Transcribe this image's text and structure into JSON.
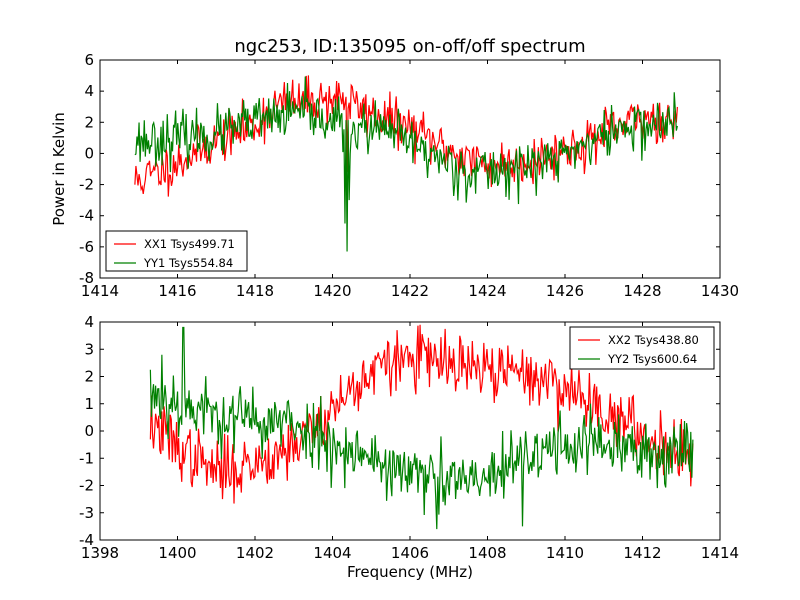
{
  "chart_data": [
    {
      "type": "line",
      "title": "ngc253, ID:135095 on-off/off spectrum",
      "xlabel": "",
      "ylabel": "Power in Kelvin",
      "xlim": [
        1414,
        1430
      ],
      "ylim": [
        -8,
        6
      ],
      "xticks": [
        1414,
        1416,
        1418,
        1420,
        1422,
        1424,
        1426,
        1428,
        1430
      ],
      "yticks": [
        -8,
        -6,
        -4,
        -2,
        0,
        2,
        4,
        6
      ],
      "x_range": [
        1414.9,
        1428.9
      ],
      "legend_position": "lower-left",
      "grid": false,
      "series": [
        {
          "name": "XX1 Tsys499.71",
          "color": "#ff0000",
          "seed": 11,
          "noise": 0.75,
          "profile": [
            [
              1414.9,
              -1.8
            ],
            [
              1415.5,
              -1.2
            ],
            [
              1416.0,
              -0.6
            ],
            [
              1417.0,
              0.8
            ],
            [
              1418.0,
              1.8
            ],
            [
              1418.5,
              3.1
            ],
            [
              1419.5,
              3.4
            ],
            [
              1420.3,
              3.6
            ],
            [
              1420.6,
              3.0
            ],
            [
              1421.0,
              2.6
            ],
            [
              1422.0,
              1.6
            ],
            [
              1423.0,
              0.2
            ],
            [
              1424.0,
              -0.8
            ],
            [
              1425.0,
              -0.5
            ],
            [
              1426.0,
              0.2
            ],
            [
              1427.0,
              1.2
            ],
            [
              1428.0,
              2.3
            ],
            [
              1428.9,
              2.2
            ]
          ],
          "spikes": [
            [
              1420.38,
              -1.2
            ]
          ]
        },
        {
          "name": "YY1 Tsys554.84",
          "color": "#008000",
          "seed": 23,
          "noise": 0.8,
          "profile": [
            [
              1414.9,
              0.8
            ],
            [
              1416.0,
              1.0
            ],
            [
              1417.0,
              1.2
            ],
            [
              1418.0,
              2.0
            ],
            [
              1419.0,
              2.6
            ],
            [
              1420.0,
              2.2
            ],
            [
              1420.5,
              1.6
            ],
            [
              1421.5,
              1.4
            ],
            [
              1422.5,
              0.0
            ],
            [
              1423.5,
              -1.2
            ],
            [
              1424.5,
              -1.0
            ],
            [
              1425.5,
              -0.6
            ],
            [
              1426.5,
              0.6
            ],
            [
              1427.5,
              1.6
            ],
            [
              1428.9,
              2.0
            ]
          ],
          "spikes": [
            [
              1420.38,
              -6.3
            ],
            [
              1420.33,
              -4.5
            ],
            [
              1420.43,
              -3.0
            ]
          ]
        }
      ]
    },
    {
      "type": "line",
      "title": "",
      "xlabel": "Frequency (MHz)",
      "ylabel": "",
      "xlim": [
        1398,
        1414
      ],
      "ylim": [
        -4,
        4
      ],
      "xticks": [
        1398,
        1400,
        1402,
        1404,
        1406,
        1408,
        1410,
        1412,
        1414
      ],
      "yticks": [
        -4,
        -3,
        -2,
        -1,
        0,
        1,
        2,
        3,
        4
      ],
      "x_range": [
        1399.3,
        1413.3
      ],
      "legend_position": "upper-right",
      "grid": false,
      "series": [
        {
          "name": "XX2 Tsys438.80",
          "color": "#ff0000",
          "seed": 37,
          "noise": 0.55,
          "profile": [
            [
              1399.3,
              0.3
            ],
            [
              1400.0,
              -0.6
            ],
            [
              1401.0,
              -1.5
            ],
            [
              1402.0,
              -1.2
            ],
            [
              1403.0,
              -0.5
            ],
            [
              1404.0,
              0.8
            ],
            [
              1405.0,
              2.2
            ],
            [
              1406.0,
              2.7
            ],
            [
              1407.0,
              2.4
            ],
            [
              1408.0,
              2.2
            ],
            [
              1409.0,
              2.1
            ],
            [
              1410.0,
              1.6
            ],
            [
              1411.0,
              0.8
            ],
            [
              1412.0,
              -0.2
            ],
            [
              1413.3,
              -0.8
            ]
          ],
          "spikes": [
            [
              1406.25,
              3.9
            ]
          ]
        },
        {
          "name": "YY2 Tsys600.64",
          "color": "#008000",
          "seed": 53,
          "noise": 0.6,
          "profile": [
            [
              1399.3,
              1.4
            ],
            [
              1400.0,
              1.0
            ],
            [
              1401.0,
              0.6
            ],
            [
              1402.0,
              0.4
            ],
            [
              1403.0,
              0.2
            ],
            [
              1404.0,
              -0.4
            ],
            [
              1405.0,
              -1.0
            ],
            [
              1406.0,
              -1.6
            ],
            [
              1407.0,
              -1.9
            ],
            [
              1408.0,
              -1.8
            ],
            [
              1409.0,
              -1.0
            ],
            [
              1410.0,
              -0.4
            ],
            [
              1411.0,
              -0.5
            ],
            [
              1412.0,
              -0.9
            ],
            [
              1413.3,
              -0.6
            ]
          ],
          "spikes": [
            [
              1399.6,
              2.8
            ],
            [
              1400.15,
              3.8
            ],
            [
              1408.9,
              -3.5
            ],
            [
              1406.7,
              -3.6
            ]
          ]
        }
      ]
    }
  ]
}
